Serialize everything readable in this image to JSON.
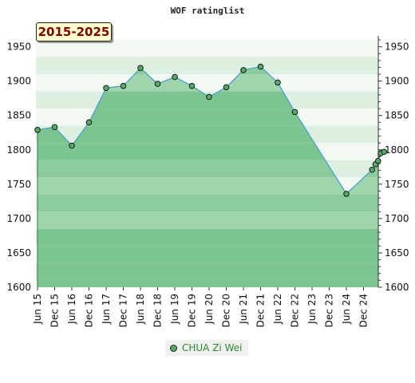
{
  "chart_data": {
    "type": "area",
    "title": "WOF ratinglist",
    "period_label": "2015-2025",
    "y_ticks": [
      1600,
      1650,
      1700,
      1750,
      1800,
      1850,
      1900,
      1950
    ],
    "ylim": [
      1600,
      1960
    ],
    "x_ticks": [
      "Jun 15",
      "Dec 15",
      "Jun 16",
      "Dec 16",
      "Jun 17",
      "Dec 17",
      "Jun 18",
      "Dec 18",
      "Jun 19",
      "Dec 19",
      "Jun 20",
      "Dec 20",
      "Jun 21",
      "Dec 21",
      "Jun 22",
      "Dec 22",
      "Jun 23",
      "Dec 23",
      "Jun 24",
      "Dec 24"
    ],
    "series": [
      {
        "name": "CHUA Zi Wei",
        "color": "#55aa66",
        "points": [
          [
            0,
            1829
          ],
          [
            1,
            1833
          ],
          [
            2,
            1806
          ],
          [
            3,
            1840
          ],
          [
            4,
            1890
          ],
          [
            5,
            1893
          ],
          [
            6,
            1919
          ],
          [
            7,
            1896
          ],
          [
            8,
            1906
          ],
          [
            9,
            1893
          ],
          [
            10,
            1877
          ],
          [
            11,
            1891
          ],
          [
            12,
            1916
          ],
          [
            13,
            1921
          ],
          [
            14,
            1898
          ],
          [
            15,
            1855
          ],
          [
            18,
            1736
          ],
          [
            19.5,
            1771
          ],
          [
            19.7,
            1779
          ],
          [
            19.85,
            1784
          ],
          [
            20.0,
            1795
          ],
          [
            20.2,
            1797
          ]
        ]
      }
    ],
    "grid": true,
    "legend_position": "bottom"
  }
}
